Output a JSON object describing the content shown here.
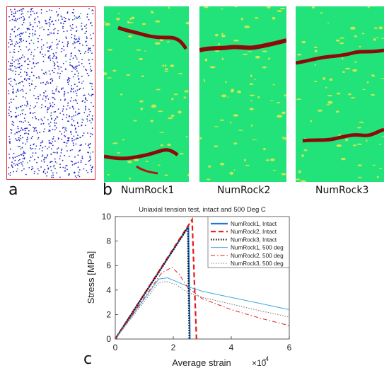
{
  "figure": {
    "panel_a_letter": "a",
    "panel_b_letter": "b",
    "panel_c_letter": "c",
    "maps": [
      {
        "label": "NumRock1"
      },
      {
        "label": "NumRock2"
      },
      {
        "label": "NumRock3"
      }
    ],
    "colors": {
      "map_background": "#22e27a",
      "fracture": "#8b0a0a",
      "damage_yellow": "#e6e84a",
      "particles": "#2323c8",
      "frame_red": "#e03030"
    }
  },
  "chart_data": {
    "type": "line",
    "title": "Uniaxial tension test, intact and 500 Deg C",
    "xlabel": "Average strain",
    "ylabel": "Stress [MPa]",
    "x_exponent_label": "×10",
    "x_exponent": "-4",
    "xlim": [
      0,
      6
    ],
    "ylim": [
      0,
      10
    ],
    "xticks": [
      "0",
      "2",
      "4",
      "6"
    ],
    "yticks": [
      "0",
      "2",
      "4",
      "6",
      "8",
      "10"
    ],
    "legend_placement": "top-right",
    "series": [
      {
        "name": "NumRock1, Intact",
        "color": "#1f77d0",
        "dash": "solid",
        "width": 2.2,
        "points": [
          [
            0,
            0
          ],
          [
            2.52,
            9.2
          ],
          [
            2.57,
            0
          ]
        ]
      },
      {
        "name": "NumRock2, Intact",
        "color": "#e41a1c",
        "dash": "7,4",
        "width": 2.2,
        "points": [
          [
            0,
            0
          ],
          [
            2.65,
            9.75
          ],
          [
            2.8,
            0
          ]
        ]
      },
      {
        "name": "NumRock3, Intact",
        "color": "#111111",
        "dash": "1.5,2",
        "width": 2.4,
        "points": [
          [
            0,
            0
          ],
          [
            2.5,
            9.1
          ],
          [
            2.55,
            0
          ]
        ]
      },
      {
        "name": "NumRock1, 500 deg",
        "color": "#3fa7e0",
        "dash": "solid",
        "width": 1,
        "points": [
          [
            0,
            0
          ],
          [
            1.5,
            4.9
          ],
          [
            1.8,
            5.0
          ],
          [
            2.2,
            4.6
          ],
          [
            2.6,
            4.2
          ],
          [
            3,
            3.9
          ],
          [
            4,
            3.4
          ],
          [
            5,
            2.9
          ],
          [
            6,
            2.4
          ]
        ]
      },
      {
        "name": "NumRock2, 500 deg",
        "color": "#e41a1c",
        "dash": "6,3,1.5,3",
        "width": 1,
        "points": [
          [
            0,
            0
          ],
          [
            1.6,
            5.4
          ],
          [
            1.95,
            5.85
          ],
          [
            2.2,
            5.3
          ],
          [
            2.5,
            4.2
          ],
          [
            3,
            3.3
          ],
          [
            4,
            2.4
          ],
          [
            5,
            1.7
          ],
          [
            6,
            1.1
          ]
        ]
      },
      {
        "name": "NumRock3, 500 deg",
        "color": "#777777",
        "dash": "1.5,2",
        "width": 1,
        "points": [
          [
            0,
            0
          ],
          [
            1.5,
            4.6
          ],
          [
            1.75,
            4.7
          ],
          [
            2.1,
            4.45
          ],
          [
            2.5,
            3.8
          ],
          [
            3,
            3.4
          ],
          [
            4,
            2.85
          ],
          [
            5,
            2.3
          ],
          [
            6,
            1.8
          ]
        ]
      }
    ]
  }
}
